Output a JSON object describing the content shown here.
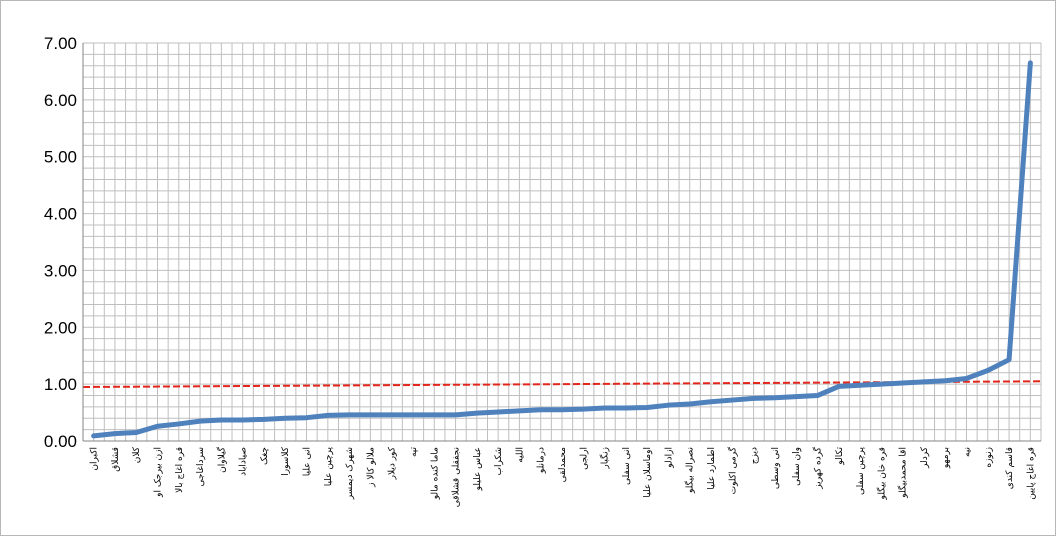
{
  "chart_data": {
    "type": "line",
    "title": "",
    "xlabel": "",
    "ylabel": "",
    "ylim": [
      0,
      7
    ],
    "y_ticks": [
      "0.00",
      "1.00",
      "2.00",
      "3.00",
      "4.00",
      "5.00",
      "6.00",
      "7.00"
    ],
    "grid": true,
    "minor_grid_per_major": 5,
    "legend": "none",
    "categories": [
      "اکبران",
      "قشلاق",
      "کلان",
      "ازن بیرجک او",
      "قره اغاج بالا",
      "سرداغاجی",
      "گیلاوان",
      "صیاداباد",
      "چغک",
      "کلاسورا",
      "انی علیا",
      "پرچین علیا",
      "شهرک دیمسر",
      "ملالو کالا ز",
      "کور دیلار",
      "تپه",
      "ماما کنده مالو",
      "نجفقلی قشلاقی",
      "عباس علیلو",
      "شکراب",
      "اللیه",
      "درمانلو",
      "محمدلقی",
      "ارلجی",
      "زنگبار",
      "انی سفلی",
      "اوماسلان علیا",
      "ازادلو",
      "نصراله بیگلو",
      "اطمارد علیا",
      "گرمی اکلوت",
      "دیزج",
      "انی وسطی",
      "وان سفلی",
      "گرده کهریز",
      "تکالو",
      "پرچین سفلی",
      "قره خان بیگلو",
      "اقا محمدبیگلو",
      "کردلر",
      "برمهو",
      "نیه",
      "زنوزه",
      "قاسم کندی",
      "قره اغاج پایین"
    ],
    "series": [
      {
        "values": [
          0.09,
          0.13,
          0.15,
          0.26,
          0.3,
          0.35,
          0.37,
          0.37,
          0.38,
          0.4,
          0.41,
          0.45,
          0.46,
          0.46,
          0.46,
          0.46,
          0.46,
          0.46,
          0.49,
          0.51,
          0.53,
          0.55,
          0.55,
          0.56,
          0.58,
          0.58,
          0.59,
          0.63,
          0.65,
          0.69,
          0.72,
          0.75,
          0.76,
          0.78,
          0.8,
          0.96,
          0.98,
          1.0,
          1.02,
          1.04,
          1.06,
          1.1,
          1.24,
          1.43,
          6.65
        ],
        "color": "#4f81bd"
      }
    ],
    "reference_line": {
      "x_start": "اکبران",
      "y_start": 0.95,
      "x_end": "قره اغاج پایین",
      "y_end": 1.05,
      "color": "#e3261b",
      "style": "dashed"
    }
  }
}
